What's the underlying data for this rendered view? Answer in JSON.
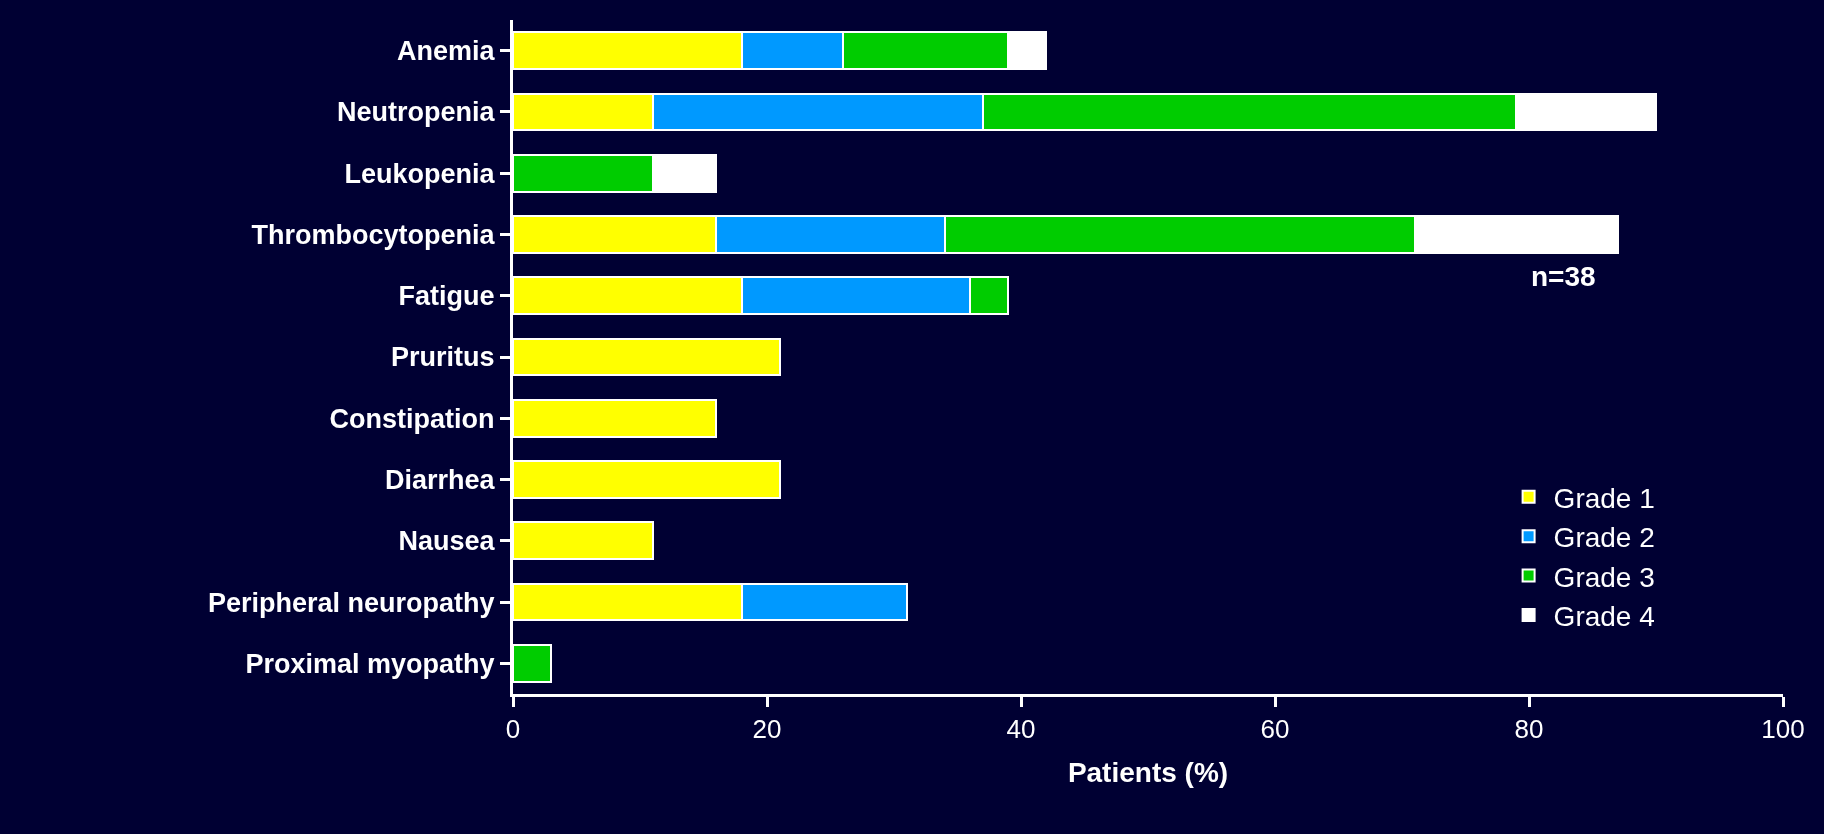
{
  "chart_data": {
    "type": "bar",
    "orientation": "horizontal",
    "stacked": true,
    "categories": [
      "Anemia",
      "Neutropenia",
      "Leukopenia",
      "Thrombocytopenia",
      "Fatigue",
      "Pruritus",
      "Constipation",
      "Diarrhea",
      "Nausea",
      "Peripheral neuropathy",
      "Proximal myopathy"
    ],
    "series": [
      {
        "name": "Grade 1",
        "color": "#ffff00",
        "values": [
          18,
          11,
          null,
          16,
          18,
          21,
          16,
          21,
          11,
          18,
          null
        ]
      },
      {
        "name": "Grade 2",
        "color": "#0099ff",
        "values": [
          8,
          26,
          null,
          18,
          18,
          null,
          null,
          null,
          null,
          13,
          null
        ]
      },
      {
        "name": "Grade 3",
        "color": "#00cc00",
        "values": [
          13,
          42,
          11,
          37,
          3,
          null,
          null,
          null,
          null,
          null,
          3
        ]
      },
      {
        "name": "Grade 4",
        "color": "#ffffff",
        "values": [
          3,
          11,
          5,
          16,
          null,
          null,
          null,
          null,
          null,
          null,
          null
        ]
      }
    ],
    "xlabel": "Patients (%)",
    "xlim": [
      0,
      100
    ],
    "xticks": [
      0,
      20,
      40,
      60,
      80,
      100
    ],
    "annotations": [
      "n=38"
    ],
    "legend": "bottom right",
    "grid": false
  }
}
